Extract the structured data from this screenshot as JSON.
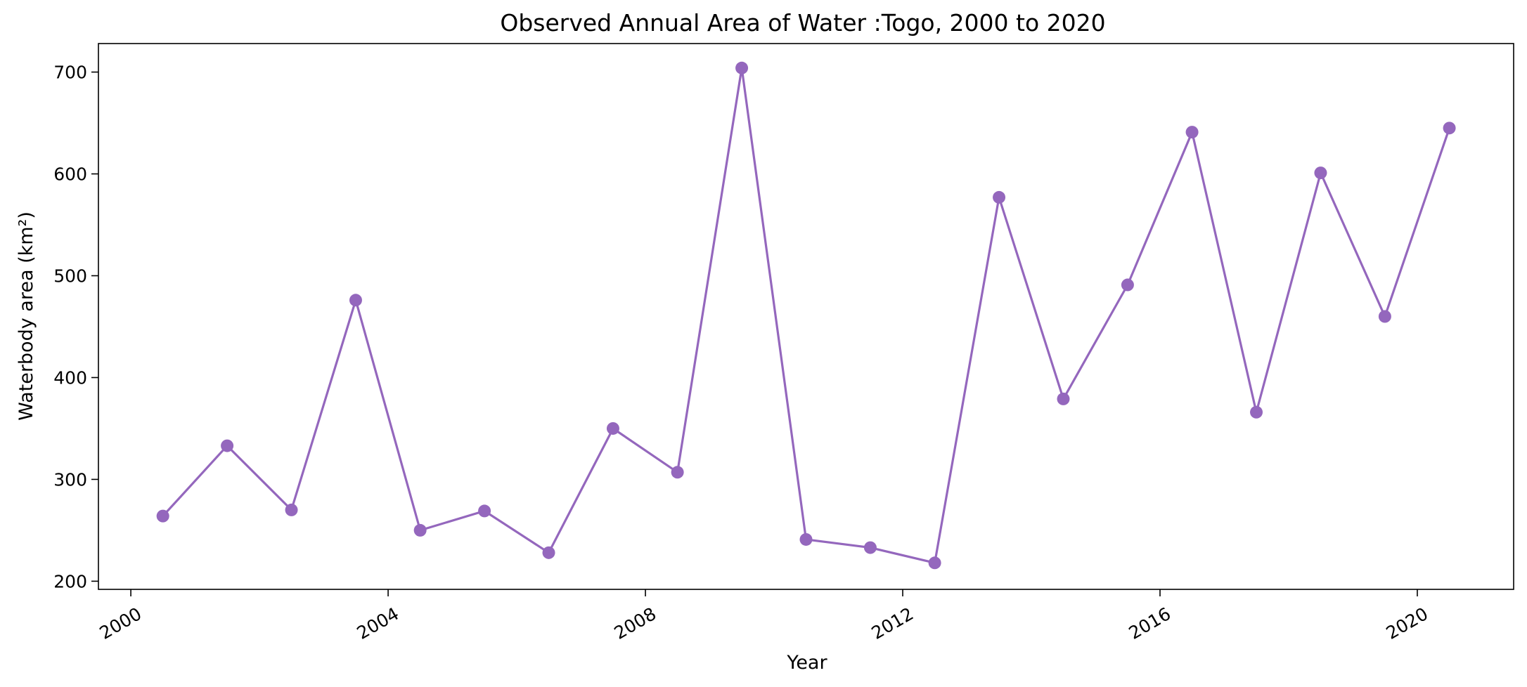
{
  "chart_data": {
    "type": "line",
    "title": "Observed Annual Area of Water :Togo, 2000 to 2020",
    "xlabel": "Year",
    "ylabel": "Waterbody area (km²)",
    "x_ticks": [
      "2000",
      "2004",
      "2008",
      "2012",
      "2016",
      "2020"
    ],
    "y_ticks": [
      "200",
      "300",
      "400",
      "500",
      "600",
      "700"
    ],
    "xlim": [
      "1999-07-01",
      "2021-07-01"
    ],
    "ylim": [
      192,
      728
    ],
    "grid": false,
    "legend": "none",
    "marker": "circle",
    "color": "#9467bd",
    "series": [
      {
        "x": [
          "2000-07-01",
          "2001-07-01",
          "2002-07-01",
          "2003-07-01",
          "2004-07-01",
          "2005-07-01",
          "2006-07-01",
          "2007-07-01",
          "2008-07-01",
          "2009-07-01",
          "2010-07-01",
          "2011-07-01",
          "2012-07-01",
          "2013-07-01",
          "2014-07-01",
          "2015-07-01",
          "2016-07-01",
          "2017-07-01",
          "2018-07-01",
          "2019-07-01",
          "2020-07-01"
        ],
        "y": [
          264,
          333,
          270,
          476,
          250,
          269,
          228,
          350,
          307,
          704,
          241,
          233,
          218,
          577,
          379,
          491,
          641,
          366,
          601,
          460,
          645
        ]
      }
    ]
  }
}
